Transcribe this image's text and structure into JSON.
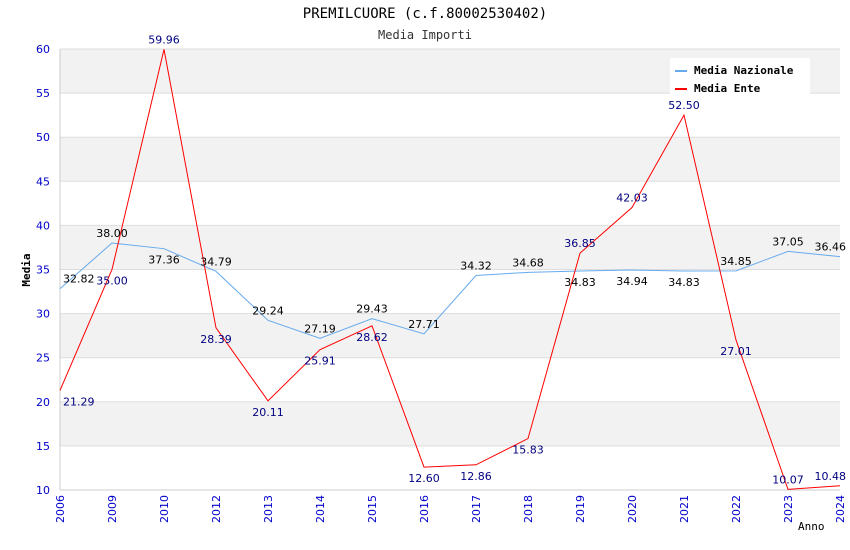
{
  "chart_data": {
    "type": "line",
    "title": "PREMILCUORE (c.f.80002530402)",
    "subtitle": "Media Importi",
    "xlabel": "Anno",
    "ylabel": "Media",
    "ylim": [
      10,
      60
    ],
    "yticks": [
      10,
      15,
      20,
      25,
      30,
      35,
      40,
      45,
      50,
      55,
      60
    ],
    "grid": true,
    "legend_position": "top-right",
    "categories": [
      "2006",
      "2009",
      "2010",
      "2012",
      "2013",
      "2014",
      "2015",
      "2016",
      "2017",
      "2018",
      "2019",
      "2020",
      "2021",
      "2022",
      "2023",
      "2024"
    ],
    "series": [
      {
        "name": "Media Nazionale",
        "color": "#66aaee",
        "label_color": "#000000",
        "values": [
          32.82,
          38.0,
          37.36,
          34.79,
          29.24,
          27.19,
          29.43,
          27.71,
          34.32,
          34.68,
          34.83,
          34.94,
          34.83,
          34.85,
          37.05,
          36.46
        ]
      },
      {
        "name": "Media Ente",
        "color": "#ff0000",
        "label_color": "#000080",
        "values": [
          21.29,
          35.0,
          59.96,
          28.39,
          20.11,
          25.91,
          28.62,
          12.6,
          12.86,
          15.83,
          36.85,
          42.03,
          52.5,
          27.01,
          10.07,
          10.48
        ]
      }
    ]
  }
}
